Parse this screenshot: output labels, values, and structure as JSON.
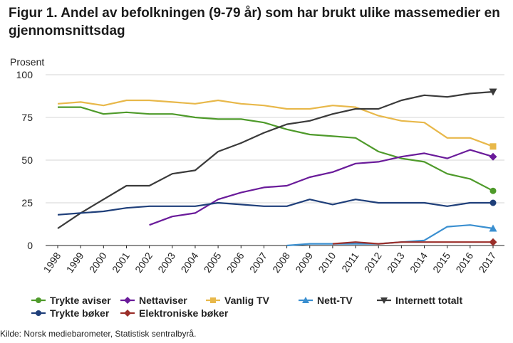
{
  "title": "Figur 1. Andel av befolkningen (9-79 år) som har brukt ulike massemedier en gjennomsnittsdag",
  "source": "Kilde: Norsk mediebarometer, Statistisk sentralbyrå.",
  "chart_data": {
    "type": "line",
    "title": "Figur 1. Andel av befolkningen (9-79 år) som har brukt ulike massemedier en gjennomsnittsdag",
    "xlabel": "",
    "ylabel": "Prosent",
    "ylim": [
      0,
      100
    ],
    "yticks": [
      0,
      25,
      50,
      75,
      100
    ],
    "grid": true,
    "legend_position": "bottom",
    "x": [
      "1998",
      "1999",
      "2000",
      "2001",
      "2002",
      "2003",
      "2004",
      "2005",
      "2006",
      "2007",
      "2008",
      "2009",
      "2010",
      "2011",
      "2012",
      "2013",
      "2014",
      "2015",
      "2016",
      "2017"
    ],
    "series": [
      {
        "name": "Trykte aviser",
        "color": "#4e9a2a",
        "marker": "circle",
        "values": [
          81,
          81,
          77,
          78,
          77,
          77,
          75,
          74,
          74,
          72,
          68,
          65,
          64,
          63,
          55,
          51,
          49,
          42,
          39,
          32
        ]
      },
      {
        "name": "Nettaviser",
        "color": "#6a1b9a",
        "marker": "diamond",
        "values": [
          null,
          null,
          null,
          null,
          12,
          17,
          19,
          27,
          31,
          34,
          35,
          40,
          43,
          48,
          49,
          52,
          54,
          51,
          56,
          52
        ]
      },
      {
        "name": "Vanlig TV",
        "color": "#e8b84a",
        "marker": "square",
        "values": [
          83,
          84,
          82,
          85,
          85,
          84,
          83,
          85,
          83,
          82,
          80,
          80,
          82,
          81,
          76,
          73,
          72,
          63,
          63,
          58
        ]
      },
      {
        "name": "Nett-TV",
        "color": "#3a8fd0",
        "marker": "triangle-up",
        "values": [
          null,
          null,
          null,
          null,
          null,
          null,
          null,
          null,
          null,
          null,
          0,
          1,
          1,
          1,
          1,
          2,
          3,
          11,
          12,
          10
        ]
      },
      {
        "name": "Internett totalt",
        "color": "#3a3a3a",
        "marker": "triangle-down",
        "values": [
          10,
          19,
          27,
          35,
          35,
          42,
          44,
          55,
          60,
          66,
          71,
          73,
          77,
          80,
          80,
          85,
          88,
          87,
          89,
          90
        ]
      },
      {
        "name": "Trykte bøker",
        "color": "#1f3f7a",
        "marker": "circle",
        "values": [
          18,
          19,
          20,
          22,
          23,
          23,
          23,
          25,
          24,
          23,
          23,
          27,
          24,
          27,
          25,
          25,
          25,
          23,
          25,
          25
        ]
      },
      {
        "name": "Elektroniske bøker",
        "color": "#9b2f2a",
        "marker": "diamond",
        "values": [
          null,
          null,
          null,
          null,
          null,
          null,
          null,
          null,
          null,
          null,
          null,
          null,
          1,
          2,
          1,
          2,
          2,
          2,
          2,
          2
        ]
      }
    ]
  }
}
